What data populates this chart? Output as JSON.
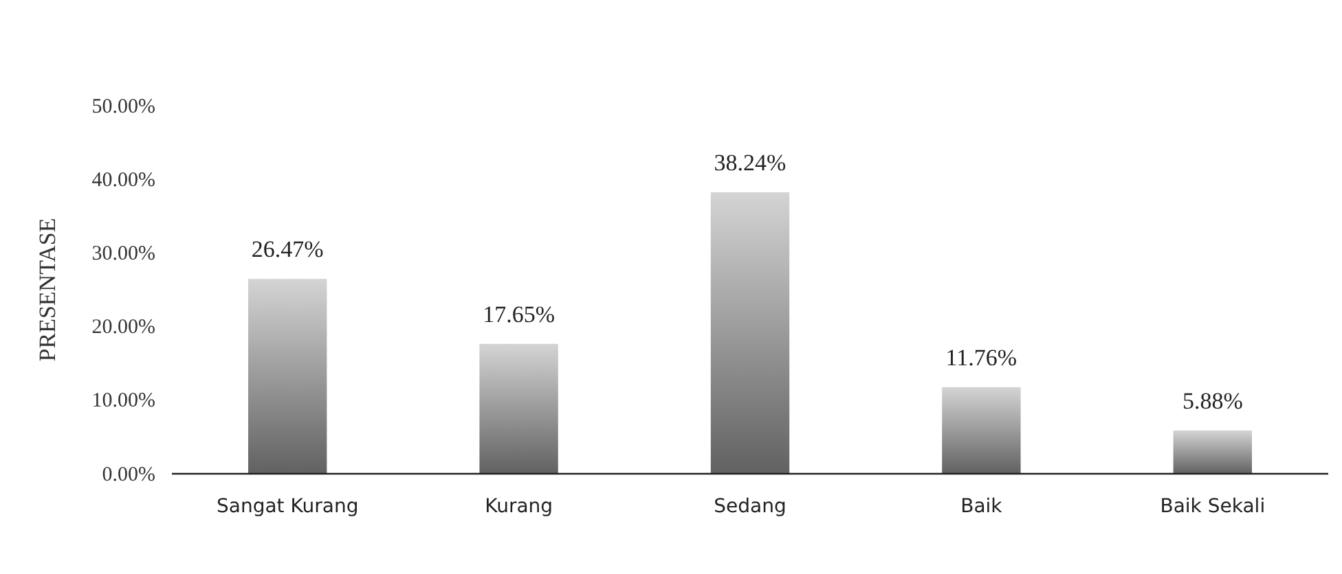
{
  "chart_data": {
    "type": "bar",
    "ylabel": "PRESENTASE",
    "categories": [
      "Sangat Kurang",
      "Kurang",
      "Sedang",
      "Baik",
      "Baik Sekali"
    ],
    "values": [
      26.47,
      17.65,
      38.24,
      11.76,
      5.88
    ],
    "value_labels": [
      "26.47%",
      "17.65%",
      "38.24%",
      "11.76%",
      "5.88%"
    ],
    "color": "#9a9a9a",
    "ylim": [
      0,
      50
    ],
    "yticks": [
      {
        "value": 0,
        "label": "0.00%"
      },
      {
        "value": 10,
        "label": "10.00%"
      },
      {
        "value": 20,
        "label": "20.00%"
      },
      {
        "value": 30,
        "label": "30.00%"
      },
      {
        "value": 40,
        "label": "40.00%"
      },
      {
        "value": 50,
        "label": "50.00%"
      }
    ],
    "grid": false
  }
}
